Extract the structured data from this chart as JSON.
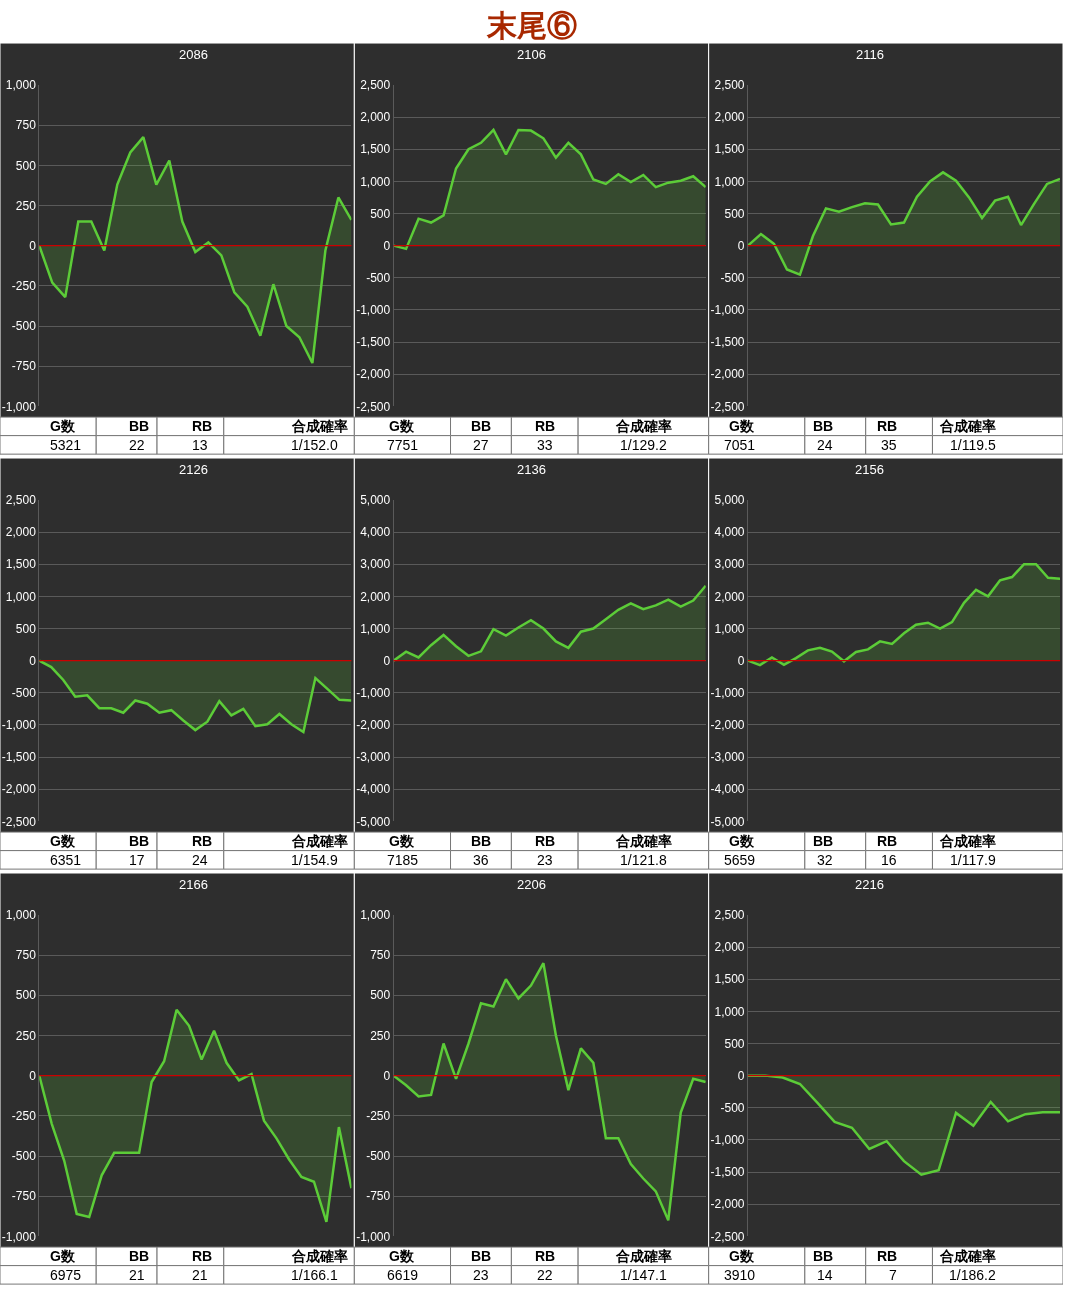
{
  "chart_data": [
    {
      "type": "area",
      "title": "2086",
      "categories": [
        null,
        null,
        null,
        null,
        null,
        null,
        null,
        null,
        null,
        null,
        null,
        null,
        null,
        null,
        null,
        null,
        null,
        null,
        null,
        null,
        null,
        null,
        null,
        null,
        null
      ],
      "series": [
        {
          "color": "#5ccc38",
          "values": [
            0,
            -230,
            -320,
            150,
            150,
            -30,
            380,
            580,
            675,
            380,
            530,
            150,
            -40,
            20,
            -60,
            -290,
            -380,
            -560,
            -240,
            -500,
            -570,
            -730,
            -30,
            300,
            160
          ]
        }
      ],
      "ylim": [
        -1000,
        1000
      ],
      "yticks": [
        {
          "value": -1000,
          "label": "-1,000"
        },
        -750,
        -500,
        -250,
        0,
        250,
        500,
        750,
        {
          "value": 1000,
          "label": "1,000"
        }
      ],
      "grid": "y",
      "tick_labels": "y",
      "ref_lines": [
        {
          "axis": "y",
          "value": 0,
          "color": "#cc0000"
        }
      ],
      "annotations": [
        "G数",
        "BB",
        "RB",
        "合成確率",
        "5321",
        "22",
        "13",
        "1/152.0",
        "末尾⑥"
      ]
    },
    {
      "type": "area",
      "title": "2106",
      "categories": [
        null,
        null,
        null,
        null,
        null,
        null,
        null,
        null,
        null,
        null,
        null,
        null,
        null,
        null,
        null,
        null,
        null,
        null,
        null,
        null,
        null,
        null,
        null,
        null,
        null,
        null
      ],
      "series": [
        {
          "color": "#5ccc38",
          "values": [
            0,
            -50,
            420,
            360,
            470,
            1200,
            1500,
            1600,
            1800,
            1420,
            1800,
            1790,
            1670,
            1370,
            1600,
            1420,
            1030,
            960,
            1110,
            990,
            1100,
            910,
            980,
            1010,
            1080,
            910
          ]
        }
      ],
      "ylim": [
        -2500,
        2500
      ],
      "yticks": [
        {
          "value": -2500,
          "label": "-2,500"
        },
        {
          "value": -2000,
          "label": "-2,000"
        },
        {
          "value": -1500,
          "label": "-1,500"
        },
        {
          "value": -1000,
          "label": "-1,000"
        },
        -500,
        0,
        500,
        {
          "value": 1000,
          "label": "1,000"
        },
        {
          "value": 1500,
          "label": "1,500"
        },
        {
          "value": 2000,
          "label": "2,000"
        },
        {
          "value": 2500,
          "label": "2,500"
        }
      ],
      "grid": "y",
      "tick_labels": "y",
      "ref_lines": [
        {
          "axis": "y",
          "value": 0,
          "color": "#cc0000"
        }
      ],
      "annotations": [
        "G数",
        "BB",
        "RB",
        "合成確率",
        "7751",
        "27",
        "33",
        "1/129.2"
      ]
    },
    {
      "type": "area",
      "title": "2116",
      "categories": [
        null,
        null,
        null,
        null,
        null,
        null,
        null,
        null,
        null,
        null,
        null,
        null,
        null,
        null,
        null,
        null,
        null,
        null,
        null,
        null,
        null,
        null,
        null,
        null,
        null
      ],
      "series": [
        {
          "color": "#5ccc38",
          "values": [
            0,
            180,
            30,
            -370,
            -450,
            150,
            580,
            530,
            600,
            660,
            640,
            330,
            360,
            760,
            1000,
            1140,
            1010,
            750,
            430,
            700,
            760,
            320,
            650,
            960,
            1040
          ]
        }
      ],
      "ylim": [
        -2500,
        2500
      ],
      "yticks": [
        {
          "value": -2500,
          "label": "-2,500"
        },
        {
          "value": -2000,
          "label": "-2,000"
        },
        {
          "value": -1500,
          "label": "-1,500"
        },
        {
          "value": -1000,
          "label": "-1,000"
        },
        -500,
        0,
        500,
        {
          "value": 1000,
          "label": "1,000"
        },
        {
          "value": 1500,
          "label": "1,500"
        },
        {
          "value": 2000,
          "label": "2,000"
        },
        {
          "value": 2500,
          "label": "2,500"
        }
      ],
      "grid": "y",
      "tick_labels": "y",
      "ref_lines": [
        {
          "axis": "y",
          "value": 0,
          "color": "#cc0000"
        }
      ],
      "annotations": [
        "G数",
        "BB",
        "RB",
        "合成確率",
        "7051",
        "24",
        "35",
        "1/119.5"
      ]
    },
    {
      "type": "area",
      "title": "2126",
      "categories": [
        null,
        null,
        null,
        null,
        null,
        null,
        null,
        null,
        null,
        null,
        null,
        null,
        null,
        null,
        null,
        null,
        null,
        null,
        null,
        null,
        null,
        null,
        null,
        null,
        null,
        null,
        null
      ],
      "series": [
        {
          "color": "#5ccc38",
          "values": [
            0,
            -100,
            -300,
            -560,
            -540,
            -740,
            -740,
            -810,
            -620,
            -670,
            -810,
            -770,
            -930,
            -1080,
            -950,
            -630,
            -850,
            -750,
            -1020,
            -990,
            -830,
            -990,
            -1110,
            -270,
            -440,
            -610,
            -620
          ]
        }
      ],
      "ylim": [
        -2500,
        2500
      ],
      "yticks": [
        {
          "value": -2500,
          "label": "-2,500"
        },
        {
          "value": -2000,
          "label": "-2,000"
        },
        {
          "value": -1500,
          "label": "-1,500"
        },
        {
          "value": -1000,
          "label": "-1,000"
        },
        -500,
        0,
        500,
        {
          "value": 1000,
          "label": "1,000"
        },
        {
          "value": 1500,
          "label": "1,500"
        },
        {
          "value": 2000,
          "label": "2,000"
        },
        {
          "value": 2500,
          "label": "2,500"
        }
      ],
      "grid": "y",
      "tick_labels": "y",
      "ref_lines": [
        {
          "axis": "y",
          "value": 0,
          "color": "#cc0000"
        }
      ],
      "annotations": [
        "G数",
        "BB",
        "RB",
        "合成確率",
        "6351",
        "17",
        "24",
        "1/154.9"
      ]
    },
    {
      "type": "area",
      "title": "2136",
      "categories": [
        null,
        null,
        null,
        null,
        null,
        null,
        null,
        null,
        null,
        null,
        null,
        null,
        null,
        null,
        null,
        null,
        null,
        null,
        null,
        null,
        null,
        null,
        null,
        null,
        null,
        null
      ],
      "series": [
        {
          "color": "#5ccc38",
          "values": [
            0,
            280,
            100,
            480,
            800,
            450,
            150,
            290,
            980,
            780,
            1030,
            1260,
            1000,
            600,
            400,
            900,
            1000,
            1290,
            1580,
            1780,
            1600,
            1720,
            1900,
            1680,
            1870,
            2330
          ]
        }
      ],
      "ylim": [
        -5000,
        5000
      ],
      "yticks": [
        {
          "value": -5000,
          "label": "-5,000"
        },
        {
          "value": -4000,
          "label": "-4,000"
        },
        {
          "value": -3000,
          "label": "-3,000"
        },
        {
          "value": -2000,
          "label": "-2,000"
        },
        {
          "value": -1000,
          "label": "-1,000"
        },
        0,
        {
          "value": 1000,
          "label": "1,000"
        },
        {
          "value": 2000,
          "label": "2,000"
        },
        {
          "value": 3000,
          "label": "3,000"
        },
        {
          "value": 4000,
          "label": "4,000"
        },
        {
          "value": 5000,
          "label": "5,000"
        }
      ],
      "grid": "y",
      "tick_labels": "y",
      "ref_lines": [
        {
          "axis": "y",
          "value": 0,
          "color": "#cc0000"
        }
      ],
      "annotations": [
        "G数",
        "BB",
        "RB",
        "合成確率",
        "7185",
        "36",
        "23",
        "1/121.8"
      ]
    },
    {
      "type": "area",
      "title": "2156",
      "categories": [
        null,
        null,
        null,
        null,
        null,
        null,
        null,
        null,
        null,
        null,
        null,
        null,
        null,
        null,
        null,
        null,
        null,
        null,
        null,
        null,
        null,
        null,
        null,
        null,
        null,
        null,
        null
      ],
      "series": [
        {
          "color": "#5ccc38",
          "values": [
            0,
            -140,
            100,
            -130,
            80,
            320,
            400,
            280,
            -20,
            270,
            350,
            600,
            520,
            850,
            1120,
            1180,
            1000,
            1200,
            1800,
            2200,
            2000,
            2500,
            2600,
            3000,
            3000,
            2580,
            2550
          ]
        }
      ],
      "ylim": [
        -5000,
        5000
      ],
      "yticks": [
        {
          "value": -5000,
          "label": "-5,000"
        },
        {
          "value": -4000,
          "label": "-4,000"
        },
        {
          "value": -3000,
          "label": "-3,000"
        },
        {
          "value": -2000,
          "label": "-2,000"
        },
        {
          "value": -1000,
          "label": "-1,000"
        },
        0,
        {
          "value": 1000,
          "label": "1,000"
        },
        {
          "value": 2000,
          "label": "2,000"
        },
        {
          "value": 3000,
          "label": "3,000"
        },
        {
          "value": 4000,
          "label": "4,000"
        },
        {
          "value": 5000,
          "label": "5,000"
        }
      ],
      "grid": "y",
      "tick_labels": "y",
      "ref_lines": [
        {
          "axis": "y",
          "value": 0,
          "color": "#cc0000"
        }
      ],
      "annotations": [
        "G数",
        "BB",
        "RB",
        "合成確率",
        "5659",
        "32",
        "16",
        "1/117.9"
      ]
    },
    {
      "type": "area",
      "title": "2166",
      "categories": [
        null,
        null,
        null,
        null,
        null,
        null,
        null,
        null,
        null,
        null,
        null,
        null,
        null,
        null,
        null,
        null,
        null,
        null,
        null,
        null,
        null,
        null,
        null,
        null,
        null,
        null
      ],
      "series": [
        {
          "color": "#5ccc38",
          "values": [
            0,
            -300,
            -530,
            -860,
            -880,
            -620,
            -480,
            -480,
            -480,
            -40,
            90,
            410,
            310,
            100,
            280,
            80,
            -30,
            10,
            -280,
            -390,
            -520,
            -630,
            -660,
            -910,
            -320,
            -700
          ]
        }
      ],
      "ylim": [
        -1000,
        1000
      ],
      "yticks": [
        {
          "value": -1000,
          "label": "-1,000"
        },
        -750,
        -500,
        -250,
        0,
        250,
        500,
        750,
        {
          "value": 1000,
          "label": "1,000"
        }
      ],
      "grid": "y",
      "tick_labels": "y",
      "ref_lines": [
        {
          "axis": "y",
          "value": 0,
          "color": "#cc0000"
        }
      ],
      "annotations": [
        "G数",
        "BB",
        "RB",
        "合成確率",
        "6975",
        "21",
        "21",
        "1/166.1"
      ]
    },
    {
      "type": "area",
      "title": "2206",
      "categories": [
        null,
        null,
        null,
        null,
        null,
        null,
        null,
        null,
        null,
        null,
        null,
        null,
        null,
        null,
        null,
        null,
        null,
        null,
        null,
        null,
        null,
        null,
        null,
        null,
        null,
        null
      ],
      "series": [
        {
          "color": "#5ccc38",
          "values": [
            0,
            -60,
            -130,
            -120,
            200,
            -20,
            200,
            450,
            430,
            600,
            480,
            560,
            700,
            250,
            -90,
            170,
            80,
            -390,
            -390,
            -550,
            -640,
            -720,
            -900,
            -230,
            -20,
            -40
          ]
        }
      ],
      "ylim": [
        -1000,
        1000
      ],
      "yticks": [
        {
          "value": -1000,
          "label": "-1,000"
        },
        -750,
        -500,
        -250,
        0,
        250,
        500,
        750,
        {
          "value": 1000,
          "label": "1,000"
        }
      ],
      "grid": "y",
      "tick_labels": "y",
      "ref_lines": [
        {
          "axis": "y",
          "value": 0,
          "color": "#cc0000"
        }
      ],
      "annotations": [
        "G数",
        "BB",
        "RB",
        "合成確率",
        "6619",
        "23",
        "22",
        "1/147.1"
      ]
    },
    {
      "type": "area",
      "title": "2216",
      "categories": [
        null,
        null,
        null,
        null,
        null,
        null,
        null,
        null,
        null,
        null,
        null,
        null,
        null,
        null,
        null,
        null,
        null,
        null,
        null
      ],
      "series": [
        {
          "color": "#5ccc38",
          "values": [
            0,
            0,
            -30,
            -130,
            -420,
            -720,
            -810,
            -1140,
            -1020,
            -1330,
            -1540,
            -1470,
            -580,
            -780,
            -410,
            -710,
            -600,
            -570,
            -570
          ]
        }
      ],
      "ylim": [
        -2500,
        2500
      ],
      "yticks": [
        {
          "value": -2500,
          "label": "-2,500"
        },
        {
          "value": -2000,
          "label": "-2,000"
        },
        {
          "value": -1500,
          "label": "-1,500"
        },
        {
          "value": -1000,
          "label": "-1,000"
        },
        -500,
        0,
        500,
        {
          "value": 1000,
          "label": "1,000"
        },
        {
          "value": 1500,
          "label": "1,500"
        },
        {
          "value": 2000,
          "label": "2,000"
        },
        {
          "value": 2500,
          "label": "2,500"
        }
      ],
      "grid": "y",
      "tick_labels": "y",
      "ref_lines": [
        {
          "axis": "y",
          "value": 0,
          "color": "#cc0000"
        }
      ],
      "annotations": [
        "G数",
        "BB",
        "RB",
        "合成確率",
        "3910",
        "14",
        "7",
        "1/186.2"
      ]
    }
  ]
}
